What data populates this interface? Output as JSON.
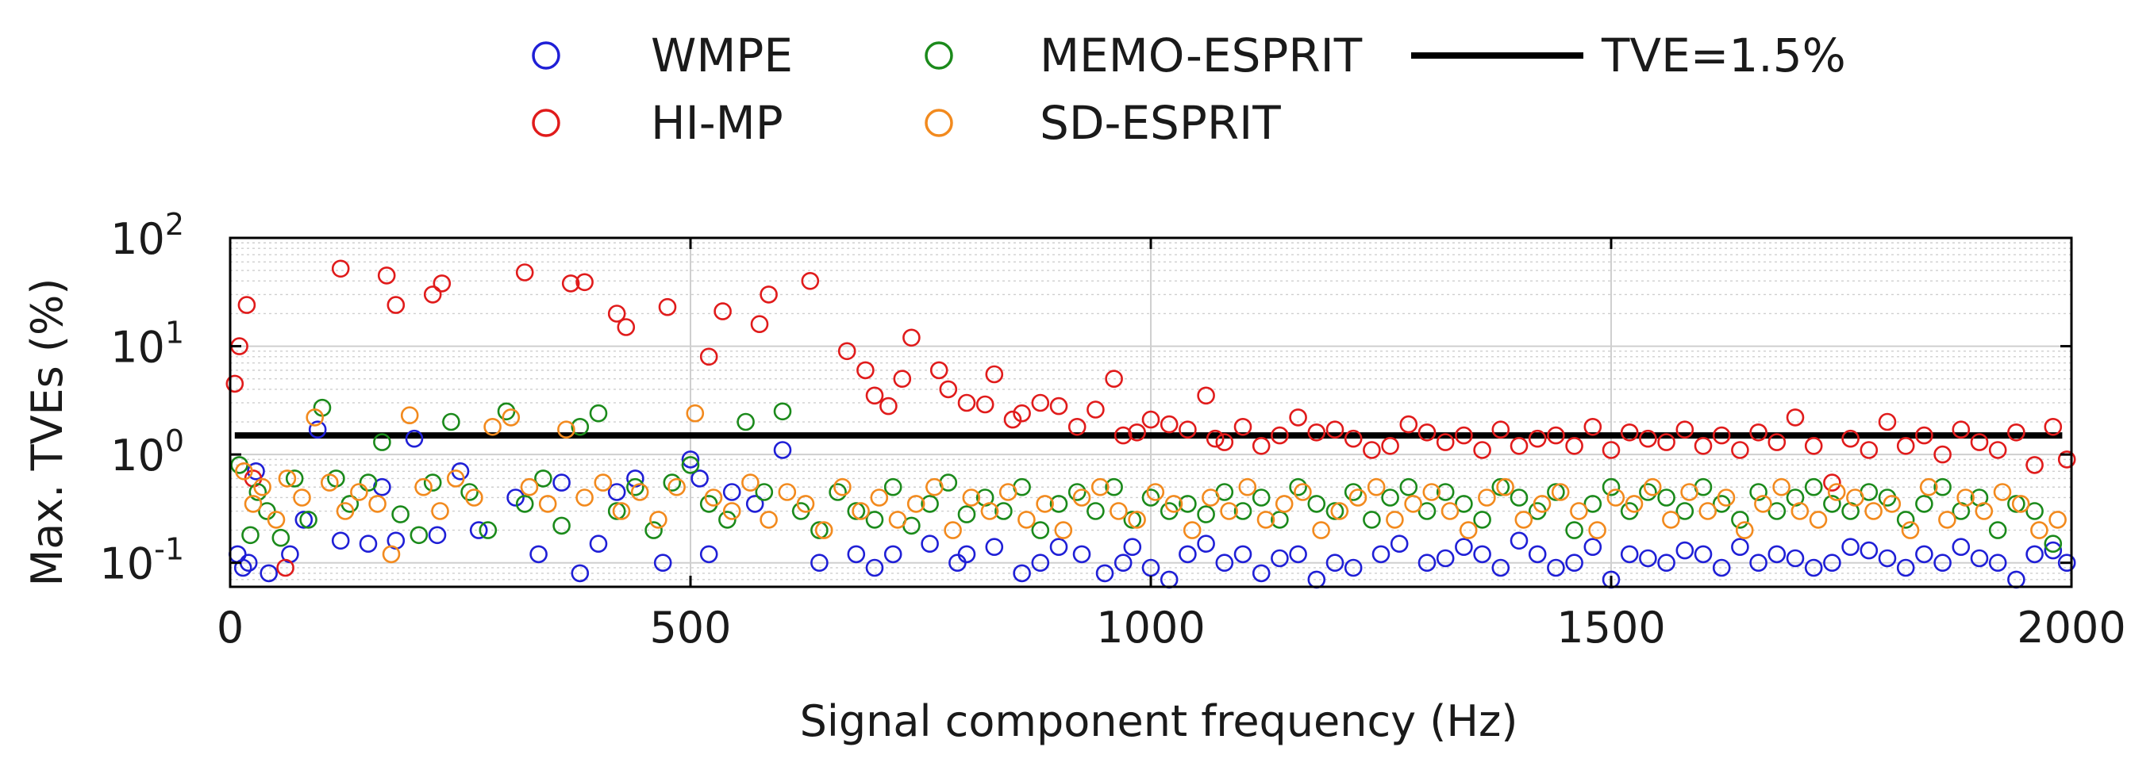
{
  "chart_data": {
    "type": "scatter",
    "title": "",
    "xlabel": "Signal component frequency (Hz)",
    "ylabel": "Max. TVEs (%)",
    "xlim": [
      0,
      2000
    ],
    "ylim": [
      0.06,
      100
    ],
    "yscale": "log",
    "xticks": [
      0,
      500,
      1000,
      1500,
      2000
    ],
    "xtick_labels": [
      "0",
      "500",
      "1000",
      "1500",
      "2000"
    ],
    "yticks": [
      {
        "value": 0.1,
        "base": "10",
        "exp": "-1"
      },
      {
        "value": 1,
        "base": "10",
        "exp": "0"
      },
      {
        "value": 10,
        "base": "10",
        "exp": "1"
      },
      {
        "value": 100,
        "base": "10",
        "exp": "2"
      }
    ],
    "grid": true,
    "legend_position": "top",
    "reference_line": {
      "name": "TVE=1.5%",
      "value": 1.5,
      "color": "#000000"
    },
    "series": [
      {
        "name": "WMPE",
        "color": "#1f1fd6",
        "x": [
          8,
          14,
          20,
          28,
          42,
          65,
          80,
          95,
          120,
          150,
          165,
          180,
          200,
          225,
          250,
          270,
          310,
          335,
          360,
          380,
          400,
          420,
          440,
          470,
          500,
          510,
          520,
          545,
          570,
          600,
          640,
          680,
          700,
          720,
          760,
          790,
          800,
          830,
          860,
          880,
          900,
          925,
          950,
          970,
          980,
          1000,
          1020,
          1040,
          1060,
          1080,
          1100,
          1120,
          1140,
          1160,
          1180,
          1200,
          1220,
          1250,
          1270,
          1300,
          1320,
          1340,
          1360,
          1380,
          1400,
          1420,
          1440,
          1460,
          1480,
          1500,
          1520,
          1540,
          1560,
          1580,
          1600,
          1620,
          1640,
          1660,
          1680,
          1700,
          1720,
          1740,
          1760,
          1780,
          1800,
          1820,
          1840,
          1860,
          1880,
          1900,
          1920,
          1940,
          1960,
          1980,
          1995
        ],
        "y": [
          0.12,
          0.09,
          0.1,
          0.7,
          0.08,
          0.12,
          0.25,
          1.7,
          0.16,
          0.15,
          0.5,
          0.16,
          1.4,
          0.18,
          0.7,
          0.2,
          0.4,
          0.12,
          0.55,
          0.08,
          0.15,
          0.45,
          0.6,
          0.1,
          0.9,
          0.6,
          0.12,
          0.45,
          0.35,
          1.1,
          0.1,
          0.12,
          0.09,
          0.12,
          0.15,
          0.1,
          0.12,
          0.14,
          0.08,
          0.1,
          0.14,
          0.12,
          0.08,
          0.1,
          0.14,
          0.09,
          0.07,
          0.12,
          0.15,
          0.1,
          0.12,
          0.08,
          0.11,
          0.12,
          0.07,
          0.1,
          0.09,
          0.12,
          0.15,
          0.1,
          0.11,
          0.14,
          0.12,
          0.09,
          0.16,
          0.12,
          0.09,
          0.1,
          0.14,
          0.07,
          0.12,
          0.11,
          0.1,
          0.13,
          0.12,
          0.09,
          0.14,
          0.1,
          0.12,
          0.11,
          0.09,
          0.1,
          0.14,
          0.13,
          0.11,
          0.09,
          0.12,
          0.1,
          0.14,
          0.11,
          0.1,
          0.07,
          0.12,
          0.13,
          0.1
        ]
      },
      {
        "name": "HI-MP",
        "color": "#e01b1b",
        "x": [
          5,
          10,
          18,
          25,
          60,
          120,
          170,
          180,
          220,
          230,
          320,
          370,
          385,
          420,
          430,
          475,
          520,
          535,
          575,
          585,
          630,
          670,
          690,
          700,
          715,
          730,
          740,
          770,
          780,
          800,
          820,
          830,
          850,
          860,
          880,
          900,
          920,
          940,
          960,
          970,
          985,
          1000,
          1020,
          1040,
          1060,
          1070,
          1080,
          1100,
          1120,
          1140,
          1160,
          1180,
          1200,
          1220,
          1240,
          1260,
          1280,
          1300,
          1320,
          1340,
          1360,
          1380,
          1400,
          1420,
          1440,
          1460,
          1480,
          1500,
          1520,
          1540,
          1560,
          1580,
          1600,
          1620,
          1640,
          1660,
          1680,
          1700,
          1720,
          1740,
          1760,
          1780,
          1800,
          1820,
          1840,
          1860,
          1880,
          1900,
          1920,
          1940,
          1960,
          1980,
          1995
        ],
        "y": [
          4.5,
          10,
          24,
          0.6,
          0.09,
          52,
          45,
          24,
          30,
          38,
          48,
          38,
          39,
          20,
          15,
          23,
          8,
          21,
          16,
          30,
          40,
          9,
          6,
          3.5,
          2.8,
          5,
          12,
          6,
          4,
          3,
          2.9,
          5.5,
          2.1,
          2.4,
          3,
          2.8,
          1.8,
          2.6,
          5,
          1.5,
          1.6,
          2.1,
          1.9,
          1.7,
          3.5,
          1.4,
          1.3,
          1.8,
          1.2,
          1.5,
          2.2,
          1.6,
          1.7,
          1.4,
          1.1,
          1.2,
          1.9,
          1.6,
          1.3,
          1.5,
          1.1,
          1.7,
          1.2,
          1.4,
          1.5,
          1.2,
          1.8,
          1.1,
          1.6,
          1.4,
          1.3,
          1.7,
          1.2,
          1.5,
          1.1,
          1.6,
          1.3,
          2.2,
          1.2,
          0.55,
          1.4,
          1.1,
          2.0,
          1.2,
          1.5,
          1.0,
          1.7,
          1.3,
          1.1,
          1.6,
          0.8,
          1.8,
          0.9
        ]
      },
      {
        "name": "MEMO-ESPRIT",
        "color": "#1b8a1b",
        "x": [
          10,
          22,
          30,
          40,
          55,
          70,
          85,
          100,
          115,
          130,
          150,
          165,
          185,
          205,
          220,
          240,
          260,
          280,
          300,
          320,
          340,
          360,
          380,
          400,
          420,
          440,
          460,
          480,
          500,
          520,
          540,
          560,
          580,
          600,
          620,
          640,
          660,
          680,
          700,
          720,
          740,
          760,
          780,
          800,
          820,
          840,
          860,
          880,
          900,
          920,
          940,
          960,
          980,
          1000,
          1020,
          1040,
          1060,
          1080,
          1100,
          1120,
          1140,
          1160,
          1180,
          1200,
          1220,
          1240,
          1260,
          1280,
          1300,
          1320,
          1340,
          1360,
          1380,
          1400,
          1420,
          1440,
          1460,
          1480,
          1500,
          1520,
          1540,
          1560,
          1580,
          1600,
          1620,
          1640,
          1660,
          1680,
          1700,
          1720,
          1740,
          1760,
          1780,
          1800,
          1820,
          1840,
          1860,
          1880,
          1900,
          1920,
          1940,
          1960,
          1980
        ],
        "y": [
          0.8,
          0.18,
          0.45,
          0.3,
          0.17,
          0.6,
          0.25,
          2.7,
          0.6,
          0.35,
          0.55,
          1.3,
          0.28,
          0.18,
          0.55,
          2.0,
          0.45,
          0.2,
          2.5,
          0.35,
          0.6,
          0.22,
          1.8,
          2.4,
          0.3,
          0.5,
          0.2,
          0.55,
          0.8,
          0.35,
          0.25,
          2.0,
          0.45,
          2.5,
          0.3,
          0.2,
          0.45,
          0.3,
          0.25,
          0.5,
          0.22,
          0.35,
          0.55,
          0.28,
          0.4,
          0.3,
          0.5,
          0.2,
          0.35,
          0.45,
          0.3,
          0.5,
          0.25,
          0.4,
          0.3,
          0.35,
          0.28,
          0.45,
          0.3,
          0.4,
          0.25,
          0.5,
          0.35,
          0.3,
          0.45,
          0.25,
          0.4,
          0.5,
          0.3,
          0.45,
          0.35,
          0.25,
          0.5,
          0.4,
          0.3,
          0.45,
          0.2,
          0.35,
          0.5,
          0.3,
          0.45,
          0.4,
          0.3,
          0.5,
          0.35,
          0.25,
          0.45,
          0.3,
          0.4,
          0.5,
          0.35,
          0.3,
          0.45,
          0.4,
          0.25,
          0.35,
          0.5,
          0.3,
          0.4,
          0.2,
          0.35,
          0.3,
          0.15
        ]
      },
      {
        "name": "SD-ESPRIT",
        "color": "#f28a1e",
        "x": [
          15,
          25,
          35,
          50,
          62,
          78,
          92,
          108,
          125,
          140,
          160,
          175,
          195,
          210,
          228,
          245,
          265,
          285,
          305,
          325,
          345,
          365,
          385,
          405,
          425,
          445,
          465,
          485,
          505,
          525,
          545,
          565,
          585,
          605,
          625,
          645,
          665,
          685,
          705,
          725,
          745,
          765,
          785,
          805,
          825,
          845,
          865,
          885,
          905,
          925,
          945,
          965,
          985,
          1005,
          1025,
          1045,
          1065,
          1085,
          1105,
          1125,
          1145,
          1165,
          1185,
          1205,
          1225,
          1245,
          1265,
          1285,
          1305,
          1325,
          1345,
          1365,
          1385,
          1405,
          1425,
          1445,
          1465,
          1485,
          1505,
          1525,
          1545,
          1565,
          1585,
          1605,
          1625,
          1645,
          1665,
          1685,
          1705,
          1725,
          1745,
          1765,
          1785,
          1805,
          1825,
          1845,
          1865,
          1885,
          1905,
          1925,
          1945,
          1965,
          1985
        ],
        "y": [
          0.7,
          0.35,
          0.5,
          0.25,
          0.6,
          0.4,
          2.2,
          0.55,
          0.3,
          0.45,
          0.35,
          0.12,
          2.3,
          0.5,
          0.3,
          0.6,
          0.4,
          1.8,
          2.2,
          0.5,
          0.35,
          1.7,
          0.4,
          0.55,
          0.3,
          0.45,
          0.25,
          0.5,
          2.4,
          0.4,
          0.3,
          0.55,
          0.25,
          0.45,
          0.35,
          0.2,
          0.5,
          0.3,
          0.4,
          0.25,
          0.35,
          0.5,
          0.2,
          0.4,
          0.3,
          0.45,
          0.25,
          0.35,
          0.2,
          0.4,
          0.5,
          0.3,
          0.25,
          0.45,
          0.35,
          0.2,
          0.4,
          0.3,
          0.5,
          0.25,
          0.35,
          0.45,
          0.2,
          0.3,
          0.4,
          0.5,
          0.25,
          0.35,
          0.45,
          0.3,
          0.2,
          0.4,
          0.5,
          0.25,
          0.35,
          0.45,
          0.3,
          0.2,
          0.4,
          0.35,
          0.5,
          0.25,
          0.45,
          0.3,
          0.4,
          0.2,
          0.35,
          0.5,
          0.3,
          0.25,
          0.45,
          0.4,
          0.3,
          0.35,
          0.2,
          0.5,
          0.25,
          0.4,
          0.3,
          0.45,
          0.35,
          0.2,
          0.25
        ]
      }
    ]
  }
}
